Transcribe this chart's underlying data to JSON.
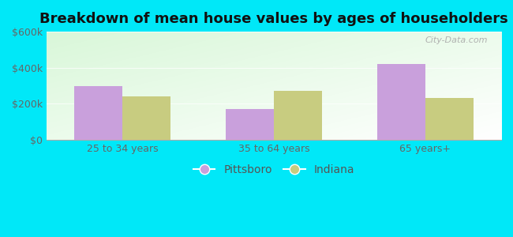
{
  "title": "Breakdown of mean house values by ages of householders",
  "categories": [
    "25 to 34 years",
    "35 to 64 years",
    "65 years+"
  ],
  "pittsboro_values": [
    300000,
    170000,
    420000
  ],
  "indiana_values": [
    240000,
    270000,
    230000
  ],
  "pittsboro_color": "#c9a0dc",
  "indiana_color": "#c8cc80",
  "bar_width": 0.32,
  "ylim": [
    0,
    600000
  ],
  "yticks": [
    0,
    200000,
    400000,
    600000
  ],
  "ytick_labels": [
    "$0",
    "$200k",
    "$400k",
    "$600k"
  ],
  "bg_color_outer": "#00e8f8",
  "legend_pittsboro": "Pittsboro",
  "legend_indiana": "Indiana",
  "title_fontsize": 13,
  "tick_fontsize": 9,
  "legend_fontsize": 10
}
